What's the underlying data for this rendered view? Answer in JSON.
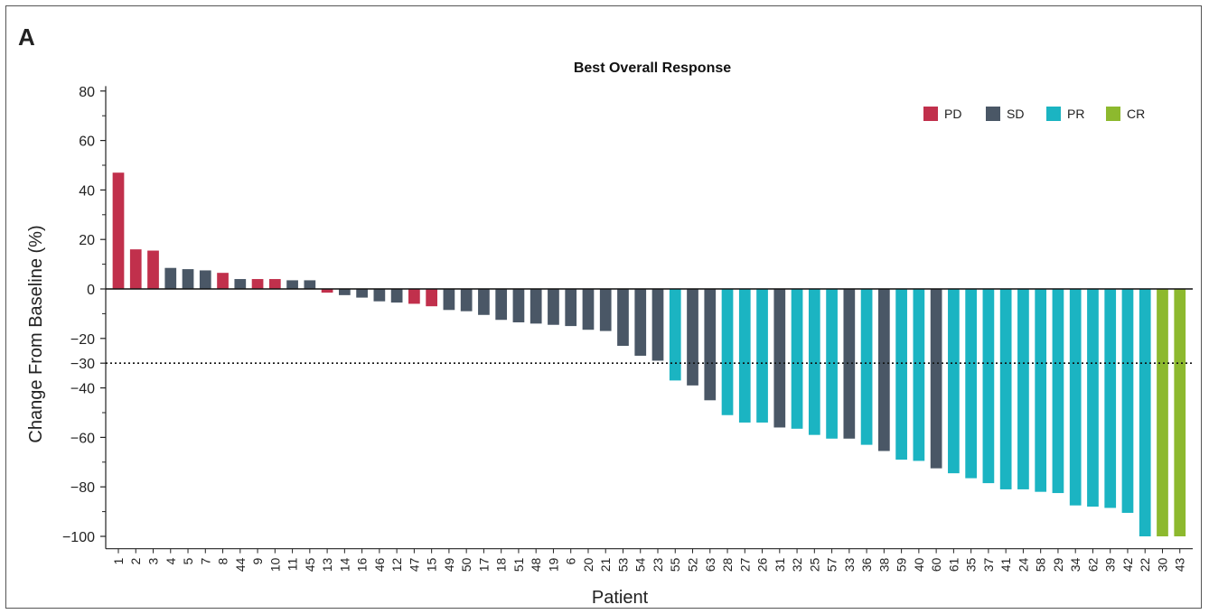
{
  "panel_label": "A",
  "chart_data": {
    "type": "bar",
    "title": "Best Overall Response",
    "xlabel": "Patient",
    "ylabel": "Change From Baseline (%)",
    "ylim": [
      -105,
      82
    ],
    "yticks": [
      80,
      60,
      40,
      20,
      0,
      -20,
      -30,
      -40,
      -60,
      -80,
      -100
    ],
    "ytick_labels": [
      "80",
      "60",
      "40",
      "20",
      "0",
      "−20",
      "−30",
      "−40",
      "−60",
      "−80",
      "−100"
    ],
    "reference_line": {
      "y": -30,
      "style": "dotted"
    },
    "legend": {
      "position": "top-right",
      "entries": [
        {
          "label": "PD",
          "color": "#c1304c"
        },
        {
          "label": "SD",
          "color": "#4a5766"
        },
        {
          "label": "PR",
          "color": "#1bb4c2"
        },
        {
          "label": "CR",
          "color": "#8db92e"
        }
      ]
    },
    "categories": [
      "1",
      "2",
      "3",
      "4",
      "5",
      "7",
      "8",
      "44",
      "9",
      "10",
      "11",
      "45",
      "13",
      "14",
      "16",
      "46",
      "12",
      "47",
      "15",
      "49",
      "50",
      "17",
      "18",
      "51",
      "48",
      "19",
      "6",
      "20",
      "21",
      "53",
      "54",
      "23",
      "55",
      "52",
      "63",
      "28",
      "27",
      "26",
      "31",
      "32",
      "25",
      "57",
      "33",
      "36",
      "38",
      "59",
      "40",
      "60",
      "61",
      "35",
      "37",
      "41",
      "24",
      "58",
      "29",
      "34",
      "62",
      "39",
      "42",
      "22",
      "30",
      "43"
    ],
    "values": [
      47,
      16,
      15.5,
      8.5,
      8,
      7.5,
      6.5,
      4,
      4,
      4,
      3.5,
      3.5,
      -1.5,
      -2.5,
      -3.5,
      -5,
      -5.5,
      -6,
      -7,
      -8.5,
      -9,
      -10.5,
      -12.5,
      -13.5,
      -14,
      -14.5,
      -15,
      -16.5,
      -17,
      -23,
      -27,
      -29,
      -37,
      -39,
      -45,
      -51,
      -54,
      -54,
      -56,
      -56.5,
      -59,
      -60.5,
      -60.5,
      -63,
      -65.5,
      -69,
      -69.5,
      -72.5,
      -74.5,
      -76.5,
      -78.5,
      -81,
      -81,
      -82,
      -82.5,
      -87.5,
      -88,
      -88.5,
      -90.5,
      -100,
      -100,
      -100
    ],
    "response": [
      "PD",
      "PD",
      "PD",
      "SD",
      "SD",
      "SD",
      "PD",
      "SD",
      "PD",
      "PD",
      "SD",
      "SD",
      "PD",
      "SD",
      "SD",
      "SD",
      "SD",
      "PD",
      "PD",
      "SD",
      "SD",
      "SD",
      "SD",
      "SD",
      "SD",
      "SD",
      "SD",
      "SD",
      "SD",
      "SD",
      "SD",
      "SD",
      "PR",
      "SD",
      "SD",
      "PR",
      "PR",
      "PR",
      "SD",
      "PR",
      "PR",
      "PR",
      "SD",
      "PR",
      "SD",
      "PR",
      "PR",
      "SD",
      "PR",
      "PR",
      "PR",
      "PR",
      "PR",
      "PR",
      "PR",
      "PR",
      "PR",
      "PR",
      "PR",
      "PR",
      "CR",
      "CR"
    ]
  }
}
